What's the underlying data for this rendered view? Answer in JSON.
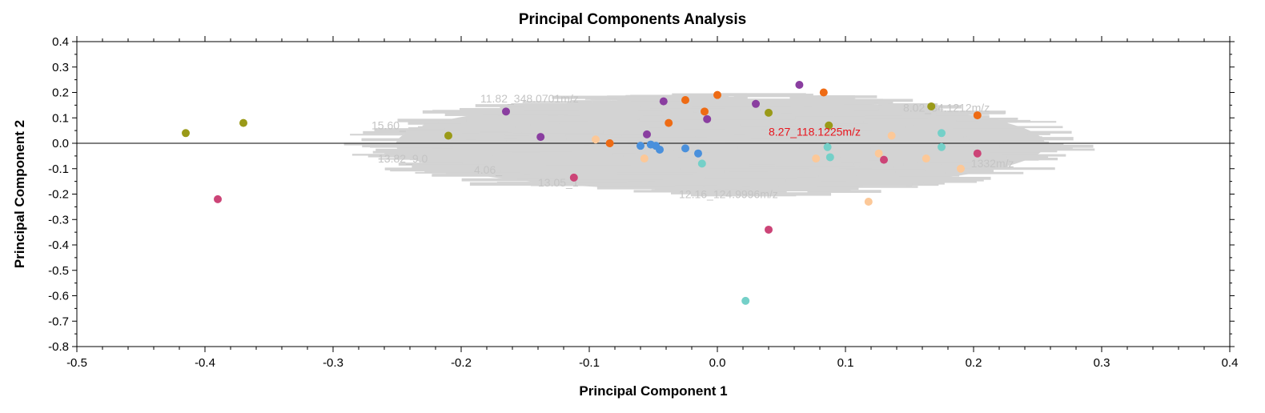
{
  "chart_data": {
    "type": "scatter",
    "title": "Principal Components Analysis",
    "xlabel": "Principal Component 1",
    "ylabel": "Principal Component 2",
    "xlim": [
      -0.5,
      0.4
    ],
    "ylim": [
      -0.8,
      0.4
    ],
    "x_ticks": [
      -0.5,
      -0.4,
      -0.3,
      -0.2,
      -0.1,
      0.0,
      0.1,
      0.2,
      0.3,
      0.4
    ],
    "y_ticks": [
      0.4,
      0.3,
      0.2,
      0.1,
      0.0,
      -0.1,
      -0.2,
      -0.3,
      -0.4,
      -0.5,
      -0.6,
      -0.7,
      -0.8
    ],
    "x_tick_labels": [
      "-0.5",
      "-0.4",
      "-0.3",
      "-0.2",
      "-0.1",
      "0.0",
      "0.1",
      "0.2",
      "0.3",
      "0.4"
    ],
    "y_tick_labels": [
      "0.4",
      "0.3",
      "0.2",
      "0.1",
      "0.0",
      "-0.1",
      "-0.2",
      "-0.3",
      "-0.4",
      "-0.5",
      "-0.6",
      "-0.7",
      "-0.8"
    ],
    "grid": false,
    "zero_line": true,
    "loadings_cloud_color": "#d3d3d3",
    "loadings_cloud": {
      "x_range": [
        -0.27,
        0.275
      ],
      "y_range": [
        -0.225,
        0.215
      ]
    },
    "highlight_annotation": {
      "text": "8.27_118.1225m/z",
      "x": 0.04,
      "y": 0.03,
      "color": "#e8141c"
    },
    "faded_annotations": [
      {
        "text": "11.82_348.0701m/z",
        "x": -0.185,
        "y": 0.16
      },
      {
        "text": "15.60_",
        "x": -0.27,
        "y": 0.055
      },
      {
        "text": "13.82_9.0",
        "x": -0.265,
        "y": -0.075
      },
      {
        "text": "4.06_",
        "x": -0.19,
        "y": -0.12
      },
      {
        "text": "13.05_1",
        "x": -0.14,
        "y": -0.17
      },
      {
        "text": "12.16_124.9996m/z",
        "x": -0.03,
        "y": -0.215
      },
      {
        "text": "8.02_34.1212m/z",
        "x": 0.145,
        "y": 0.125
      },
      {
        "text": "1332m/z",
        "x": 0.198,
        "y": -0.095
      }
    ],
    "series": [
      {
        "color": "#9a9a18",
        "points": [
          [
            -0.415,
            0.04
          ],
          [
            -0.37,
            0.08
          ],
          [
            -0.21,
            0.03
          ],
          [
            0.04,
            0.12
          ],
          [
            0.087,
            0.07
          ],
          [
            0.167,
            0.145
          ]
        ]
      },
      {
        "color": "#cc4477",
        "points": [
          [
            -0.39,
            -0.22
          ],
          [
            -0.112,
            -0.135
          ],
          [
            0.04,
            -0.34
          ],
          [
            0.13,
            -0.065
          ],
          [
            0.203,
            -0.04
          ]
        ]
      },
      {
        "color": "#8a3ea0",
        "points": [
          [
            -0.165,
            0.125
          ],
          [
            -0.138,
            0.025
          ],
          [
            -0.055,
            0.035
          ],
          [
            -0.042,
            0.165
          ],
          [
            -0.008,
            0.095
          ],
          [
            0.03,
            0.155
          ],
          [
            0.064,
            0.23
          ]
        ]
      },
      {
        "color": "#ee6b14",
        "points": [
          [
            -0.084,
            0.0
          ],
          [
            -0.038,
            0.08
          ],
          [
            -0.025,
            0.17
          ],
          [
            -0.01,
            0.125
          ],
          [
            0.0,
            0.19
          ],
          [
            0.083,
            0.2
          ],
          [
            0.203,
            0.11
          ]
        ]
      },
      {
        "color": "#4a90dc",
        "points": [
          [
            -0.06,
            -0.01
          ],
          [
            -0.052,
            -0.005
          ],
          [
            -0.048,
            -0.01
          ],
          [
            -0.045,
            -0.025
          ],
          [
            -0.025,
            -0.02
          ],
          [
            -0.015,
            -0.04
          ]
        ]
      },
      {
        "color": "#74d0c8",
        "points": [
          [
            -0.012,
            -0.08
          ],
          [
            0.022,
            -0.62
          ],
          [
            0.086,
            -0.015
          ],
          [
            0.088,
            -0.055
          ],
          [
            0.175,
            0.04
          ],
          [
            0.175,
            -0.015
          ]
        ]
      },
      {
        "color": "#fcc898",
        "points": [
          [
            -0.095,
            0.015
          ],
          [
            -0.057,
            -0.06
          ],
          [
            0.077,
            -0.06
          ],
          [
            0.118,
            -0.23
          ],
          [
            0.126,
            -0.04
          ],
          [
            0.136,
            0.03
          ],
          [
            0.163,
            -0.06
          ],
          [
            0.19,
            -0.1
          ]
        ]
      }
    ]
  }
}
